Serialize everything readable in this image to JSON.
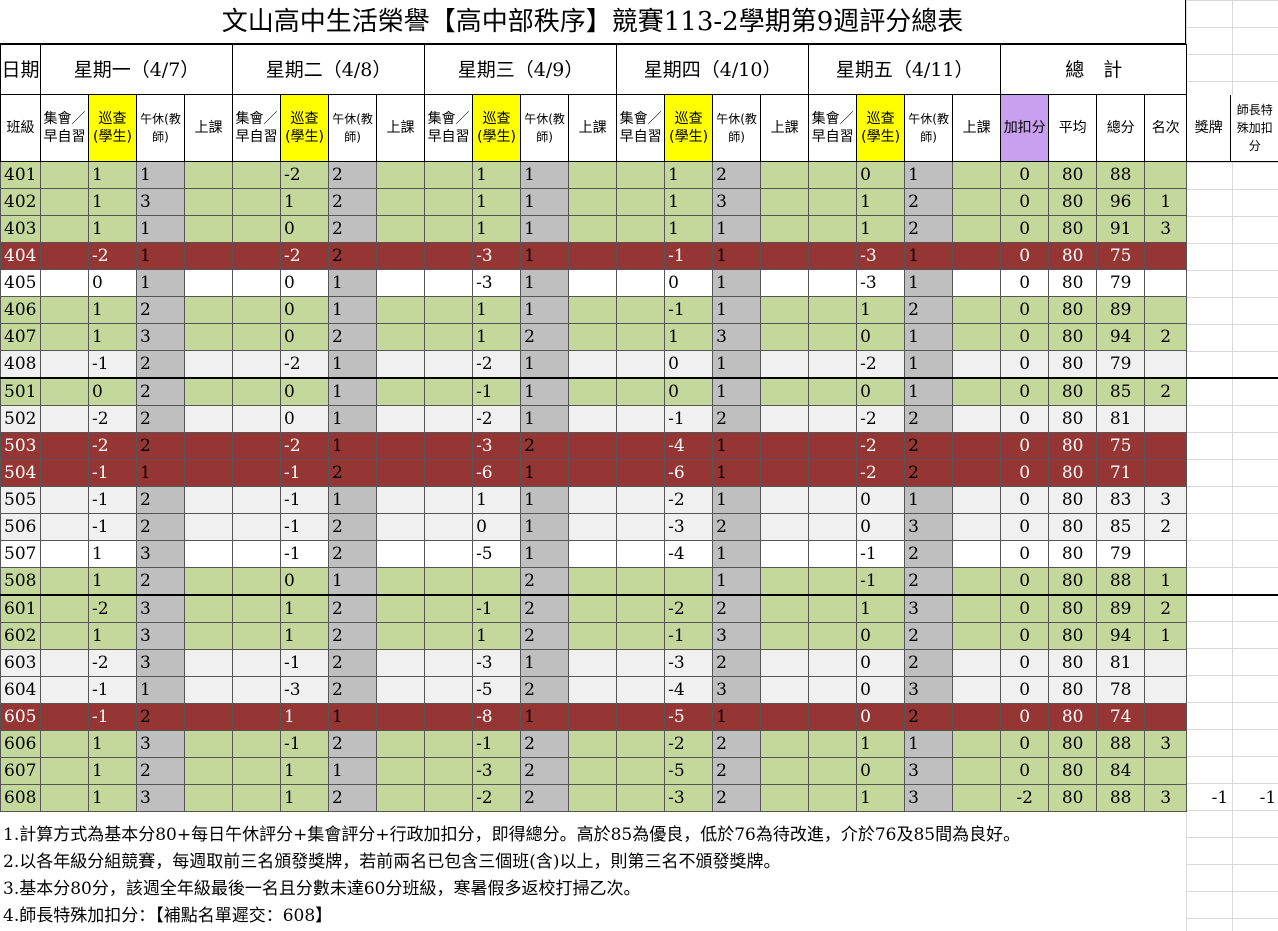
{
  "title": "文山高中生活榮譽【高中部秩序】競賽113-2學期第9週評分總表",
  "header": {
    "date_label": "日期",
    "class_label": "班級",
    "days": [
      "星期一（4/7）",
      "星期二（4/8）",
      "星期三（4/9）",
      "星期四（4/10）",
      "星期五（4/11）"
    ],
    "total_label": "總　計",
    "sub_assembly": "集會／早自習",
    "sub_patrol": "巡查(學生)",
    "sub_nap": "午休(教師)",
    "sub_class": "上課",
    "adj": "加扣分",
    "avg": "平均",
    "score": "總分",
    "rank": "名次",
    "award": "獎牌",
    "teacher_bonus": "師長特殊加扣分"
  },
  "rows": [
    {
      "cls": "401",
      "v": [
        "1",
        "1",
        "-2",
        "2",
        "1",
        "1",
        "1",
        "2",
        "0",
        "1"
      ],
      "adj": "0",
      "avg": "80",
      "score": "88",
      "rank": "",
      "bonus": "",
      "award": ""
    },
    {
      "cls": "402",
      "v": [
        "1",
        "3",
        "1",
        "2",
        "1",
        "1",
        "1",
        "3",
        "1",
        "2"
      ],
      "adj": "0",
      "avg": "80",
      "score": "96",
      "rank": "1",
      "bonus": "",
      "award": ""
    },
    {
      "cls": "403",
      "v": [
        "1",
        "1",
        "0",
        "2",
        "1",
        "1",
        "1",
        "1",
        "1",
        "2"
      ],
      "adj": "0",
      "avg": "80",
      "score": "91",
      "rank": "3",
      "bonus": "",
      "award": ""
    },
    {
      "cls": "404",
      "v": [
        "-2",
        "1",
        "-2",
        "2",
        "-3",
        "1",
        "-1",
        "1",
        "-3",
        "1"
      ],
      "adj": "0",
      "avg": "80",
      "score": "75",
      "rank": "",
      "bonus": "",
      "award": ""
    },
    {
      "cls": "405",
      "v": [
        "0",
        "1",
        "0",
        "1",
        "-3",
        "1",
        "0",
        "1",
        "-3",
        "1"
      ],
      "adj": "0",
      "avg": "80",
      "score": "79",
      "rank": "",
      "bonus": "",
      "award": ""
    },
    {
      "cls": "406",
      "v": [
        "1",
        "2",
        "0",
        "1",
        "1",
        "1",
        "-1",
        "1",
        "1",
        "2"
      ],
      "adj": "0",
      "avg": "80",
      "score": "89",
      "rank": "",
      "bonus": "",
      "award": ""
    },
    {
      "cls": "407",
      "v": [
        "1",
        "3",
        "0",
        "2",
        "1",
        "2",
        "1",
        "3",
        "0",
        "1"
      ],
      "adj": "0",
      "avg": "80",
      "score": "94",
      "rank": "2",
      "bonus": "",
      "award": ""
    },
    {
      "cls": "408",
      "v": [
        "-1",
        "2",
        "-2",
        "1",
        "-2",
        "1",
        "0",
        "1",
        "-2",
        "1"
      ],
      "adj": "0",
      "avg": "80",
      "score": "79",
      "rank": "",
      "bonus": "",
      "award": ""
    },
    {
      "cls": "501",
      "v": [
        "0",
        "2",
        "0",
        "1",
        "-1",
        "1",
        "0",
        "1",
        "0",
        "1"
      ],
      "adj": "0",
      "avg": "80",
      "score": "85",
      "rank": "2",
      "bonus": "",
      "award": ""
    },
    {
      "cls": "502",
      "v": [
        "-2",
        "2",
        "0",
        "1",
        "-2",
        "1",
        "-1",
        "2",
        "-2",
        "2"
      ],
      "adj": "0",
      "avg": "80",
      "score": "81",
      "rank": "",
      "bonus": "",
      "award": ""
    },
    {
      "cls": "503",
      "v": [
        "-2",
        "2",
        "-2",
        "1",
        "-3",
        "2",
        "-4",
        "1",
        "-2",
        "2"
      ],
      "adj": "0",
      "avg": "80",
      "score": "75",
      "rank": "",
      "bonus": "",
      "award": ""
    },
    {
      "cls": "504",
      "v": [
        "-1",
        "1",
        "-1",
        "2",
        "-6",
        "1",
        "-6",
        "1",
        "-2",
        "2"
      ],
      "adj": "0",
      "avg": "80",
      "score": "71",
      "rank": "",
      "bonus": "",
      "award": ""
    },
    {
      "cls": "505",
      "v": [
        "-1",
        "2",
        "-1",
        "1",
        "1",
        "1",
        "-2",
        "1",
        "0",
        "1"
      ],
      "adj": "0",
      "avg": "80",
      "score": "83",
      "rank": "3",
      "bonus": "",
      "award": ""
    },
    {
      "cls": "506",
      "v": [
        "-1",
        "2",
        "-1",
        "2",
        "0",
        "1",
        "-3",
        "2",
        "0",
        "3"
      ],
      "adj": "0",
      "avg": "80",
      "score": "85",
      "rank": "2",
      "bonus": "",
      "award": ""
    },
    {
      "cls": "507",
      "v": [
        "1",
        "3",
        "-1",
        "2",
        "-5",
        "1",
        "-4",
        "1",
        "-1",
        "2"
      ],
      "adj": "0",
      "avg": "80",
      "score": "79",
      "rank": "",
      "bonus": "",
      "award": ""
    },
    {
      "cls": "508",
      "v": [
        "1",
        "2",
        "0",
        "1",
        "",
        "2",
        "",
        "1",
        "-1",
        "2"
      ],
      "adj": "0",
      "avg": "80",
      "score": "88",
      "rank": "1",
      "bonus": "",
      "award": ""
    },
    {
      "cls": "601",
      "v": [
        "-2",
        "3",
        "1",
        "2",
        "-1",
        "2",
        "-2",
        "2",
        "1",
        "3"
      ],
      "adj": "0",
      "avg": "80",
      "score": "89",
      "rank": "2",
      "bonus": "",
      "award": ""
    },
    {
      "cls": "602",
      "v": [
        "1",
        "3",
        "1",
        "2",
        "1",
        "2",
        "-1",
        "3",
        "0",
        "2"
      ],
      "adj": "0",
      "avg": "80",
      "score": "94",
      "rank": "1",
      "bonus": "",
      "award": ""
    },
    {
      "cls": "603",
      "v": [
        "-2",
        "3",
        "-1",
        "2",
        "-3",
        "1",
        "-3",
        "2",
        "0",
        "2"
      ],
      "adj": "0",
      "avg": "80",
      "score": "81",
      "rank": "",
      "bonus": "",
      "award": ""
    },
    {
      "cls": "604",
      "v": [
        "-1",
        "1",
        "-3",
        "2",
        "-5",
        "2",
        "-4",
        "3",
        "0",
        "3"
      ],
      "adj": "0",
      "avg": "80",
      "score": "78",
      "rank": "",
      "bonus": "",
      "award": ""
    },
    {
      "cls": "605",
      "v": [
        "-1",
        "2",
        "1",
        "1",
        "-8",
        "1",
        "-5",
        "1",
        "0",
        "2"
      ],
      "adj": "0",
      "avg": "80",
      "score": "74",
      "rank": "",
      "bonus": "",
      "award": ""
    },
    {
      "cls": "606",
      "v": [
        "1",
        "3",
        "-1",
        "2",
        "-1",
        "2",
        "-2",
        "2",
        "1",
        "1"
      ],
      "adj": "0",
      "avg": "80",
      "score": "88",
      "rank": "3",
      "bonus": "",
      "award": ""
    },
    {
      "cls": "607",
      "v": [
        "1",
        "2",
        "1",
        "1",
        "-3",
        "2",
        "-5",
        "2",
        "0",
        "3"
      ],
      "adj": "0",
      "avg": "80",
      "score": "84",
      "rank": "",
      "bonus": "",
      "award": ""
    },
    {
      "cls": "608",
      "v": [
        "1",
        "3",
        "1",
        "2",
        "-2",
        "2",
        "-3",
        "2",
        "1",
        "3"
      ],
      "adj": "-2",
      "avg": "80",
      "score": "88",
      "rank": "3",
      "bonus": "-1",
      "award": "-1"
    }
  ],
  "notes": [
    "1.計算方式為基本分80+每日午休評分+集會評分+行政加扣分，即得總分。高於85為優良，低於76為待改進，介於76及85間為良好。",
    "2.以各年級分組競賽，每週取前三名頒發獎牌，若前兩名已包含三個班(含)以上，則第三名不頒發獎牌。",
    "3.基本分80分，該週全年級最後一名且分數未達60分班級，寒暑假多返校打掃乙次。",
    "4.師長特殊加扣分：【補點名單遲交：608】"
  ],
  "colors": {
    "green": "#c4d89b",
    "red": "#963634",
    "gray": "#bfbfbf",
    "yellow": "#ffff00",
    "purple": "#c9a0f0"
  }
}
